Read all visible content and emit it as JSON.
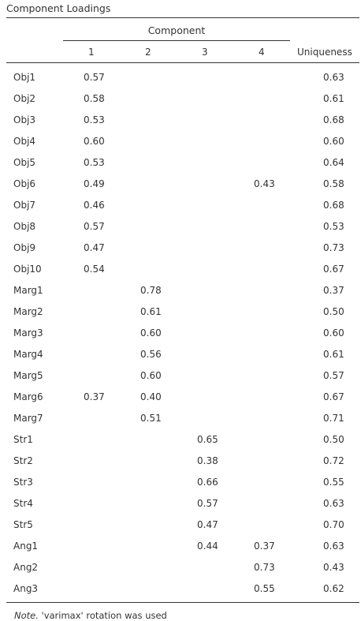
{
  "title": "Component Loadings",
  "component_header": "Component",
  "columns": [
    "1",
    "2",
    "3",
    "4"
  ],
  "uniqueness_header": "Uniqueness",
  "rows": [
    {
      "label": "Obj1",
      "c1": "0.57",
      "c2": "",
      "c3": "",
      "c4": "",
      "u": "0.63"
    },
    {
      "label": "Obj2",
      "c1": "0.58",
      "c2": "",
      "c3": "",
      "c4": "",
      "u": "0.61"
    },
    {
      "label": "Obj3",
      "c1": "0.53",
      "c2": "",
      "c3": "",
      "c4": "",
      "u": "0.68"
    },
    {
      "label": "Obj4",
      "c1": "0.60",
      "c2": "",
      "c3": "",
      "c4": "",
      "u": "0.60"
    },
    {
      "label": "Obj5",
      "c1": "0.53",
      "c2": "",
      "c3": "",
      "c4": "",
      "u": "0.64"
    },
    {
      "label": "Obj6",
      "c1": "0.49",
      "c2": "",
      "c3": "",
      "c4": "0.43",
      "u": "0.58"
    },
    {
      "label": "Obj7",
      "c1": "0.46",
      "c2": "",
      "c3": "",
      "c4": "",
      "u": "0.68"
    },
    {
      "label": "Obj8",
      "c1": "0.57",
      "c2": "",
      "c3": "",
      "c4": "",
      "u": "0.53"
    },
    {
      "label": "Obj9",
      "c1": "0.47",
      "c2": "",
      "c3": "",
      "c4": "",
      "u": "0.73"
    },
    {
      "label": "Obj10",
      "c1": "0.54",
      "c2": "",
      "c3": "",
      "c4": "",
      "u": "0.67"
    },
    {
      "label": "Marg1",
      "c1": "",
      "c2": "0.78",
      "c3": "",
      "c4": "",
      "u": "0.37"
    },
    {
      "label": "Marg2",
      "c1": "",
      "c2": "0.61",
      "c3": "",
      "c4": "",
      "u": "0.50"
    },
    {
      "label": "Marg3",
      "c1": "",
      "c2": "0.60",
      "c3": "",
      "c4": "",
      "u": "0.60"
    },
    {
      "label": "Marg4",
      "c1": "",
      "c2": "0.56",
      "c3": "",
      "c4": "",
      "u": "0.61"
    },
    {
      "label": "Marg5",
      "c1": "",
      "c2": "0.60",
      "c3": "",
      "c4": "",
      "u": "0.57"
    },
    {
      "label": "Marg6",
      "c1": "0.37",
      "c2": "0.40",
      "c3": "",
      "c4": "",
      "u": "0.67"
    },
    {
      "label": "Marg7",
      "c1": "",
      "c2": "0.51",
      "c3": "",
      "c4": "",
      "u": "0.71"
    },
    {
      "label": "Str1",
      "c1": "",
      "c2": "",
      "c3": "0.65",
      "c4": "",
      "u": "0.50"
    },
    {
      "label": "Str2",
      "c1": "",
      "c2": "",
      "c3": "0.38",
      "c4": "",
      "u": "0.72"
    },
    {
      "label": "Str3",
      "c1": "",
      "c2": "",
      "c3": "0.66",
      "c4": "",
      "u": "0.55"
    },
    {
      "label": "Str4",
      "c1": "",
      "c2": "",
      "c3": "0.57",
      "c4": "",
      "u": "0.63"
    },
    {
      "label": "Str5",
      "c1": "",
      "c2": "",
      "c3": "0.47",
      "c4": "",
      "u": "0.70"
    },
    {
      "label": "Ang1",
      "c1": "",
      "c2": "",
      "c3": "0.44",
      "c4": "0.37",
      "u": "0.63"
    },
    {
      "label": "Ang2",
      "c1": "",
      "c2": "",
      "c3": "",
      "c4": "0.73",
      "u": "0.43"
    },
    {
      "label": "Ang3",
      "c1": "",
      "c2": "",
      "c3": "",
      "c4": "0.55",
      "u": "0.62"
    }
  ],
  "note_label": "Note.",
  "note_text": " 'varimax' rotation was used"
}
